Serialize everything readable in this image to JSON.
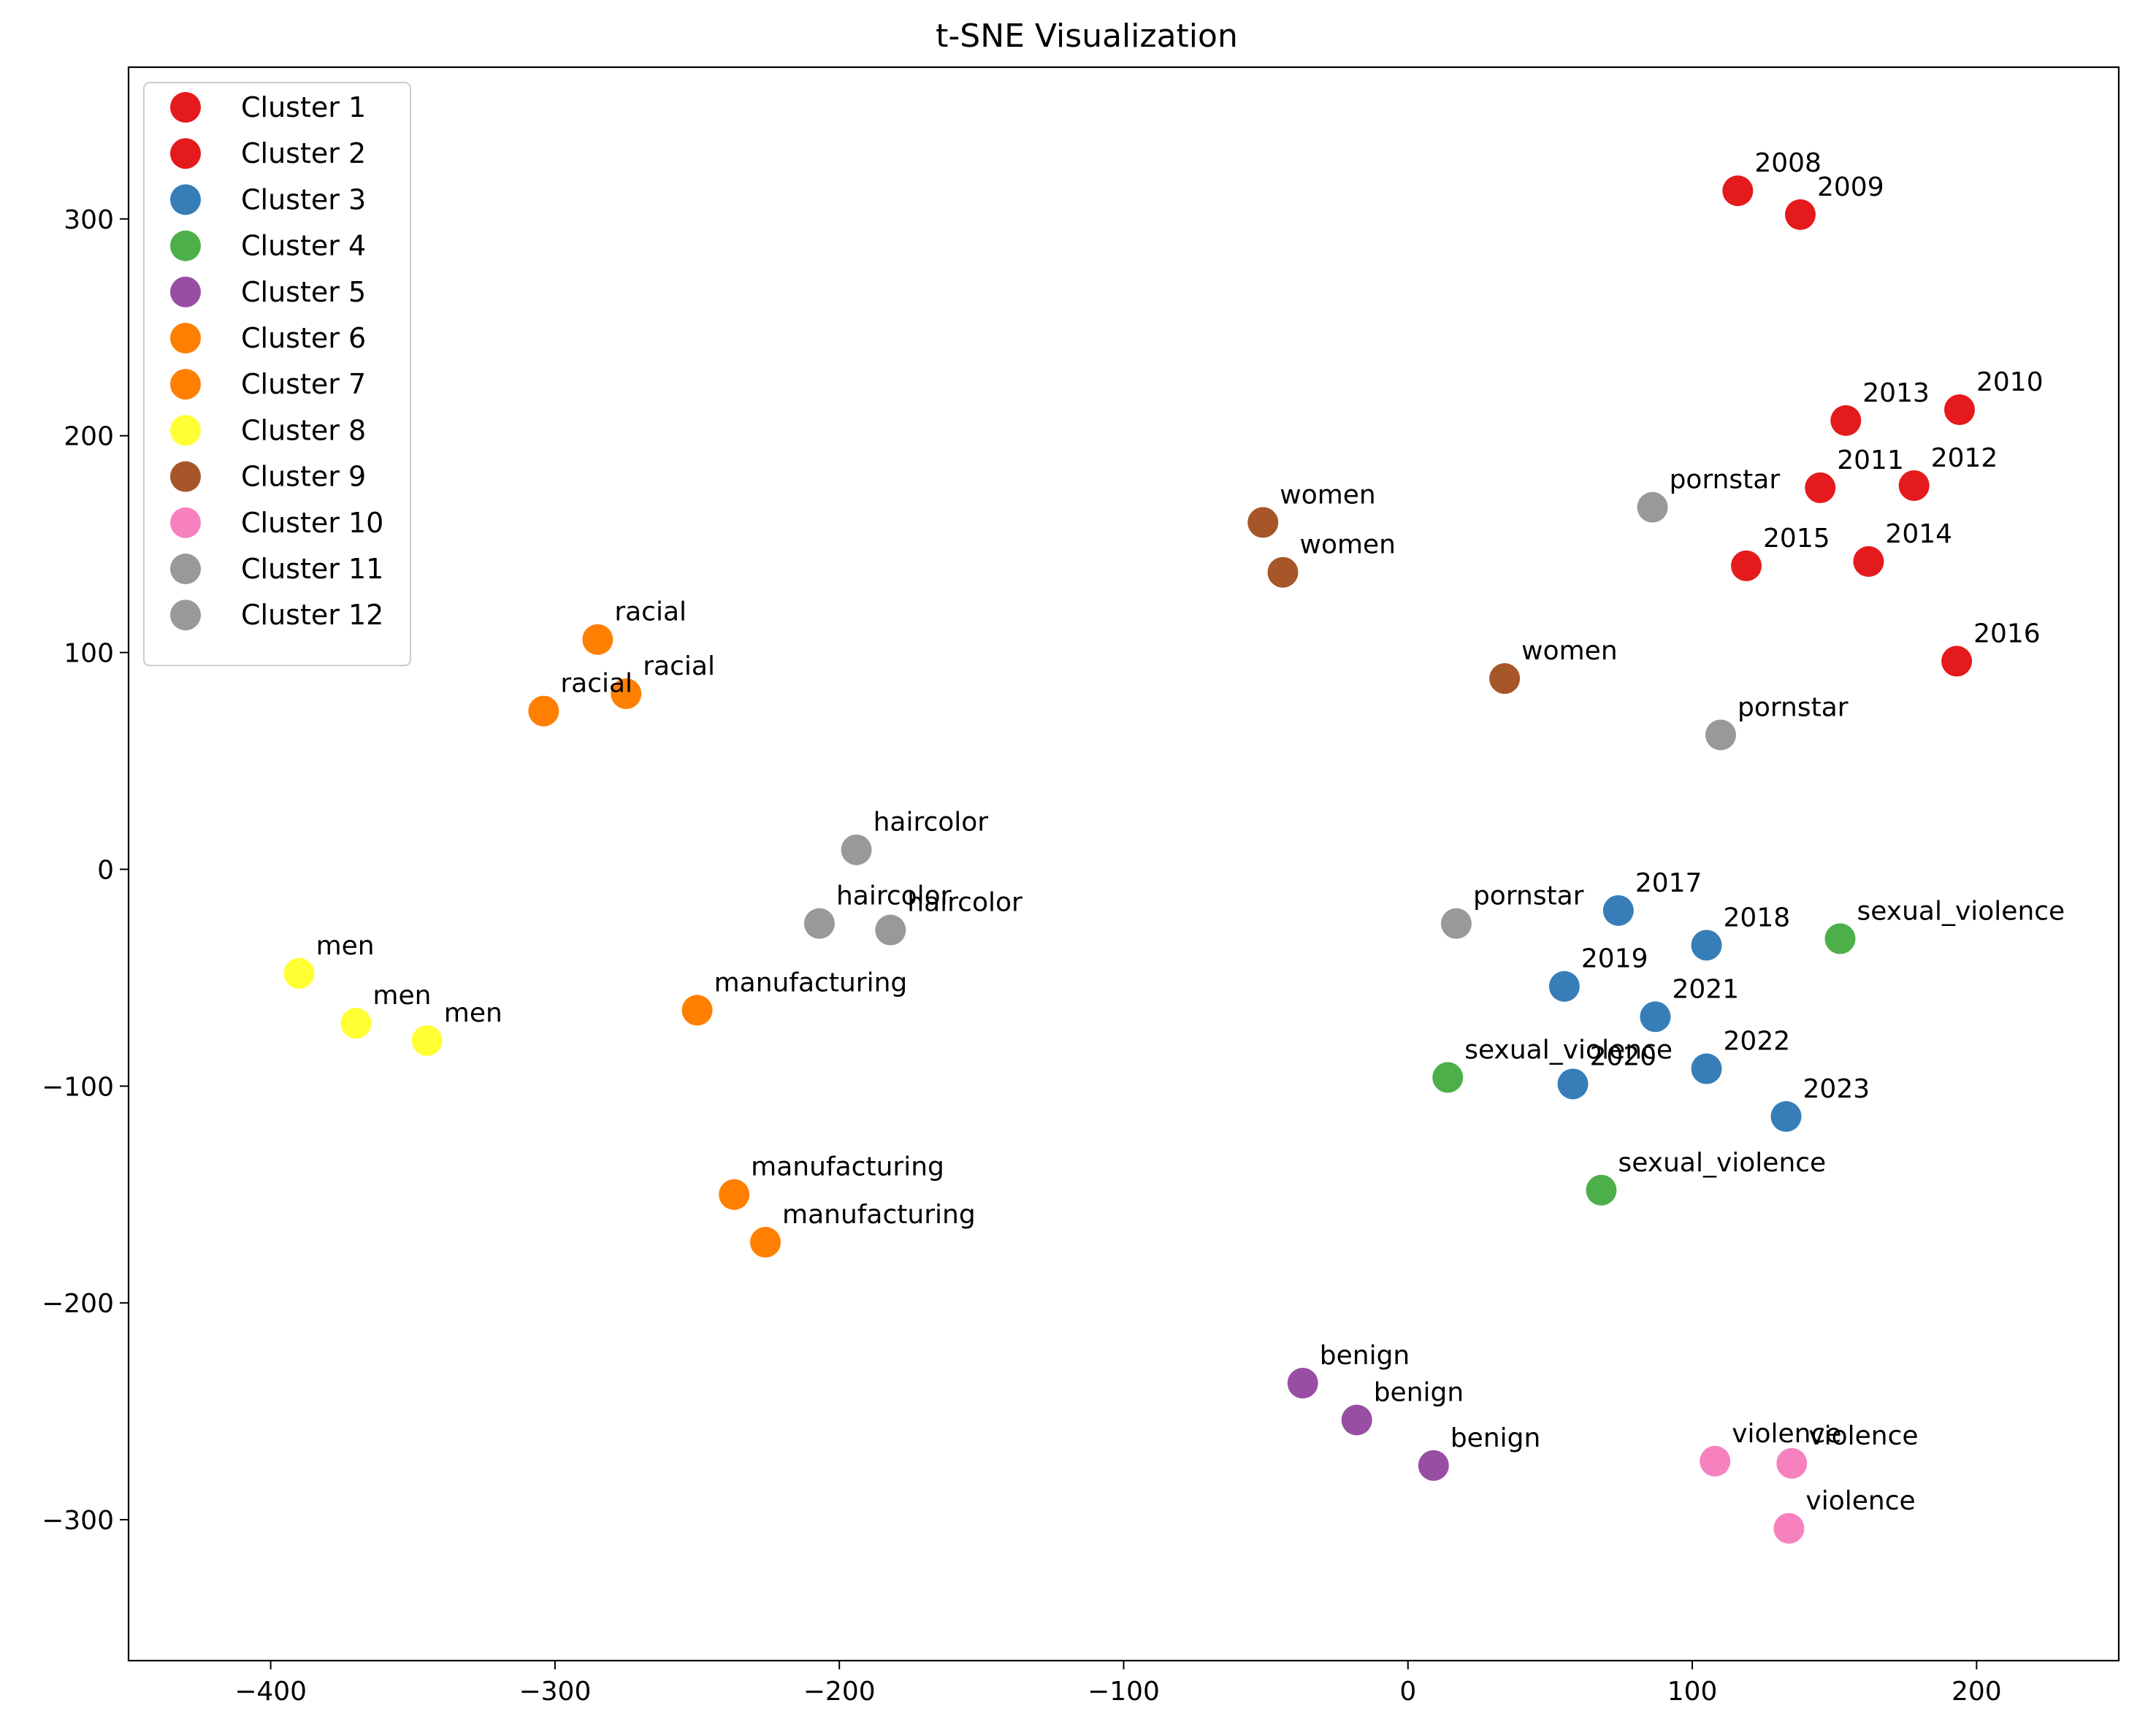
{
  "chart_data": {
    "type": "scatter",
    "title": "t-SNE Visualization",
    "xlabel": "",
    "ylabel": "",
    "xlim": [
      -450,
      250
    ],
    "ylim": [
      -365,
      370
    ],
    "xticks": [
      -400,
      -300,
      -200,
      -100,
      0,
      100,
      200
    ],
    "yticks": [
      -300,
      -200,
      -100,
      0,
      100,
      200,
      300
    ],
    "grid": false,
    "legend_position": "upper-left",
    "series": [
      {
        "name": "Cluster 1",
        "color": "#e41a1c",
        "points": [
          {
            "x": 116,
            "y": 313,
            "label": "2008"
          },
          {
            "x": 138,
            "y": 302,
            "label": "2009"
          },
          {
            "x": 194,
            "y": 212,
            "label": "2010"
          },
          {
            "x": 145,
            "y": 176,
            "label": "2011"
          }
        ]
      },
      {
        "name": "Cluster 2",
        "color": "#e41a1c",
        "points": [
          {
            "x": 178,
            "y": 177,
            "label": "2012"
          },
          {
            "x": 154,
            "y": 207,
            "label": "2013"
          },
          {
            "x": 162,
            "y": 142,
            "label": "2014"
          },
          {
            "x": 119,
            "y": 140,
            "label": "2015"
          },
          {
            "x": 193,
            "y": 96,
            "label": "2016"
          }
        ]
      },
      {
        "name": "Cluster 3",
        "color": "#377eb8",
        "points": [
          {
            "x": 74,
            "y": -19,
            "label": "2017"
          },
          {
            "x": 105,
            "y": -35,
            "label": "2018"
          },
          {
            "x": 55,
            "y": -54,
            "label": "2019"
          },
          {
            "x": 58,
            "y": -99,
            "label": "2020"
          },
          {
            "x": 87,
            "y": -68,
            "label": "2021"
          },
          {
            "x": 105,
            "y": -92,
            "label": "2022"
          },
          {
            "x": 133,
            "y": -114,
            "label": "2023"
          }
        ]
      },
      {
        "name": "Cluster 4",
        "color": "#4daf4a",
        "points": [
          {
            "x": 152,
            "y": -32,
            "label": "sexual_violence"
          },
          {
            "x": 14,
            "y": -96,
            "label": "sexual_violence"
          },
          {
            "x": 68,
            "y": -148,
            "label": "sexual_violence"
          }
        ]
      },
      {
        "name": "Cluster 5",
        "color": "#984ea3",
        "points": [
          {
            "x": -37,
            "y": -237,
            "label": "benign"
          },
          {
            "x": -18,
            "y": -254,
            "label": "benign"
          },
          {
            "x": 9,
            "y": -275,
            "label": "benign"
          }
        ]
      },
      {
        "name": "Cluster 6",
        "color": "#ff7f00",
        "points": [
          {
            "x": -285,
            "y": 106,
            "label": "racial"
          },
          {
            "x": -275,
            "y": 81,
            "label": "racial"
          },
          {
            "x": -304,
            "y": 73,
            "label": "racial"
          }
        ]
      },
      {
        "name": "Cluster 7",
        "color": "#ff7f00",
        "points": [
          {
            "x": -250,
            "y": -65,
            "label": "manufacturing"
          },
          {
            "x": -237,
            "y": -150,
            "label": "manufacturing"
          },
          {
            "x": -226,
            "y": -172,
            "label": "manufacturing"
          }
        ]
      },
      {
        "name": "Cluster 8",
        "color": "#ffff33",
        "points": [
          {
            "x": -390,
            "y": -48,
            "label": "men"
          },
          {
            "x": -370,
            "y": -71,
            "label": "men"
          },
          {
            "x": -345,
            "y": -79,
            "label": "men"
          }
        ]
      },
      {
        "name": "Cluster 9",
        "color": "#a65628",
        "points": [
          {
            "x": -51,
            "y": 160,
            "label": "women"
          },
          {
            "x": -44,
            "y": 137,
            "label": "women"
          },
          {
            "x": 34,
            "y": 88,
            "label": "women"
          }
        ]
      },
      {
        "name": "Cluster 10",
        "color": "#f781bf",
        "points": [
          {
            "x": 108,
            "y": -273,
            "label": "violence"
          },
          {
            "x": 135,
            "y": -274,
            "label": "violence"
          },
          {
            "x": 134,
            "y": -304,
            "label": "violence"
          }
        ]
      },
      {
        "name": "Cluster 11",
        "color": "#999999",
        "points": [
          {
            "x": 86,
            "y": 167,
            "label": "pornstar"
          },
          {
            "x": 110,
            "y": 62,
            "label": "pornstar"
          },
          {
            "x": 17,
            "y": -25,
            "label": "pornstar"
          }
        ]
      },
      {
        "name": "Cluster 12",
        "color": "#999999",
        "points": [
          {
            "x": -194,
            "y": 9,
            "label": "haircolor"
          },
          {
            "x": -207,
            "y": -25,
            "label": "haircolor"
          },
          {
            "x": -182,
            "y": -28,
            "label": "haircolor"
          }
        ]
      }
    ]
  }
}
